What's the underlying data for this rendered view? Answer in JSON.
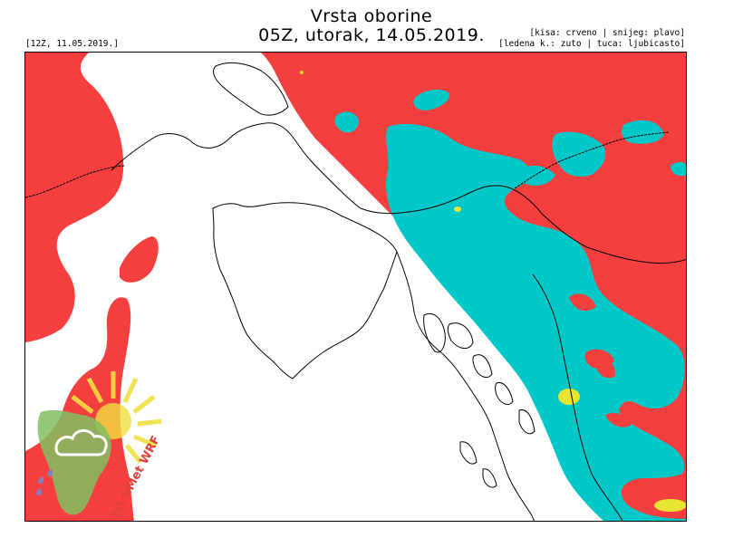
{
  "header": {
    "title": "Vrsta oborine",
    "subtitle": "05Z, utorak, 14.05.2019.",
    "init_run": "[12Z, 11.05.2019.]",
    "legend_line1": "[kisa: crveno | snijeg: plavo]",
    "legend_line2": "[ledena k.: zuto | tuca: ljubicasto]"
  },
  "map": {
    "colors": {
      "rain": "#f53f3f",
      "snow": "#00c8c8",
      "freezing_rain": "#e6e632",
      "hail": "#c080ff",
      "background": "#ffffff",
      "coastline": "#000000"
    }
  },
  "logo": {
    "text": "IstraMet WRF",
    "text_color": "#e0403c",
    "icon": "sun-cloud-rain-icon"
  }
}
